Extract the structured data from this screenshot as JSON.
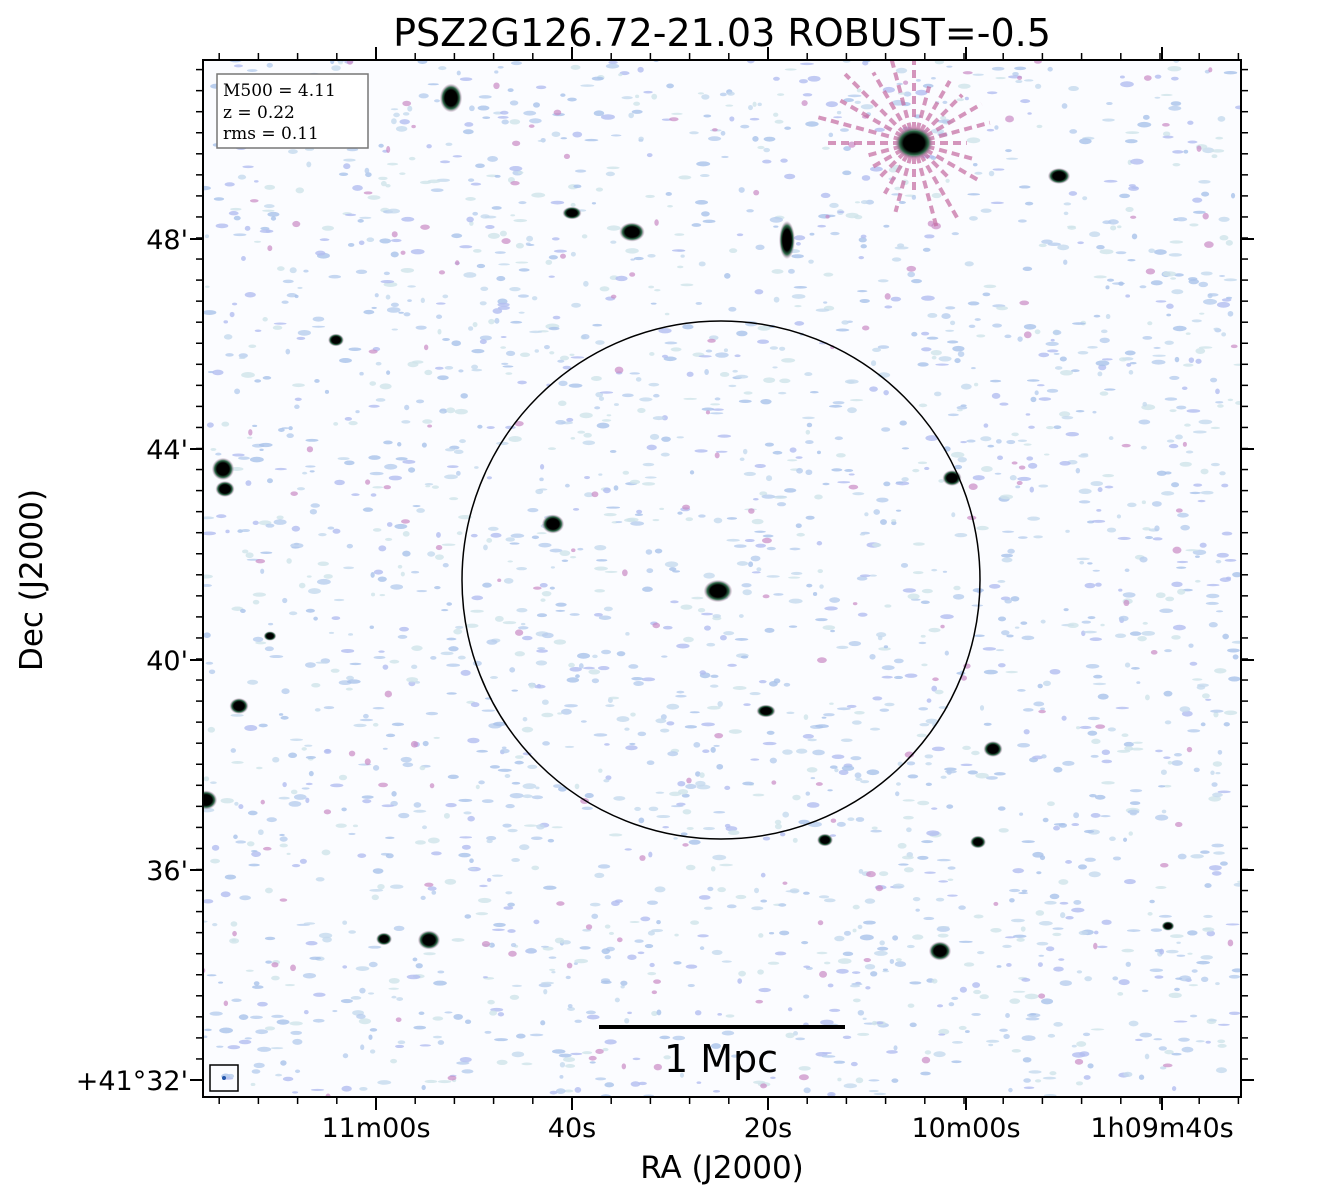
{
  "title": "PSZ2G126.72-21.03 ROBUST=-0.5",
  "x_axis": {
    "label": "RA (J2000)",
    "ticks": [
      "11m00s",
      "40s",
      "20s",
      "10m00s",
      "1h09m40s"
    ]
  },
  "y_axis": {
    "label": "Dec (J2000)",
    "ticks": [
      "48'",
      "44'",
      "40'",
      "36'",
      "+41°32'"
    ]
  },
  "info_box": [
    "M500 = 4.11",
    "z = 0.22",
    "rms = 0.11"
  ],
  "scale_bar": "1 Mpc"
}
